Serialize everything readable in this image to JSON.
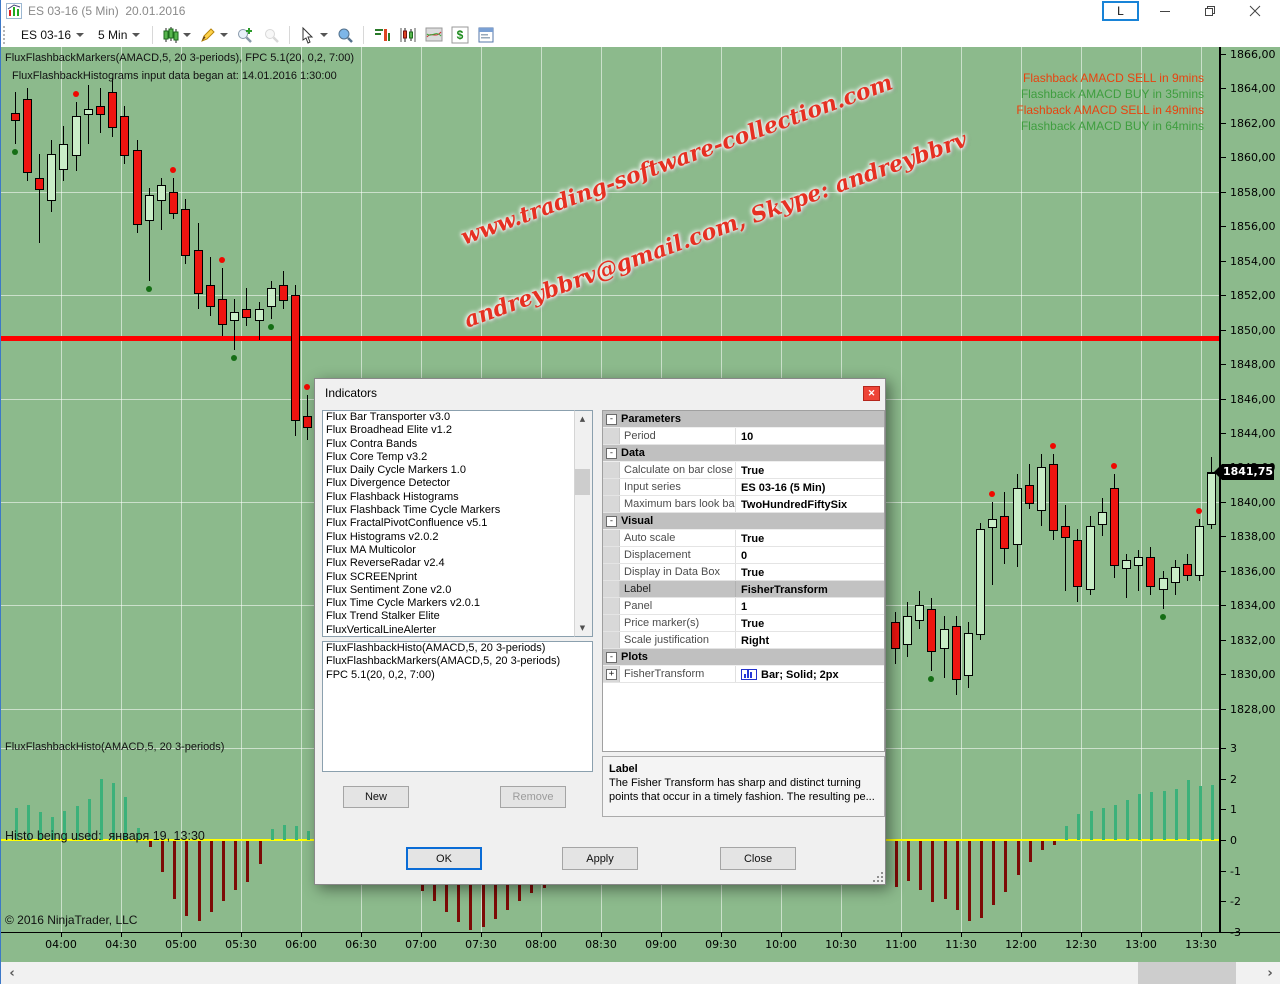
{
  "window": {
    "title": "ES 03-16 (5 Min)  20.01.2016",
    "link_button": "L"
  },
  "toolbar": {
    "instrument": "ES 03-16",
    "interval": "5 Min"
  },
  "chart": {
    "overlay_labels": [
      "FluxFlashbackMarkers(AMACD,5, 20 3-periods), FPC 5.1(20, 0,2, 7:00)",
      "FluxFlashbackHistograms input data began at: 14.01.2016 1:30:00"
    ],
    "alerts": [
      {
        "label": "Flashback AMACD SELL in 9mins",
        "side": "sell"
      },
      {
        "label": "Flashback AMACD BUY in 35mins",
        "side": "buy"
      },
      {
        "label": "Flashback AMACD SELL in 49mins",
        "side": "sell"
      },
      {
        "label": "Flashback AMACD BUY in 64mins",
        "side": "buy"
      }
    ],
    "watermark_line1": "www.trading-software-collection.com",
    "watermark_line2": "andreybbrv@gmail.com, Skype: andreybbrv",
    "panel2_label": "FluxFlashbackHisto(AMACD,5, 20 3-periods)",
    "histo_note": "Histo being used:  января 19, 13:30",
    "copyright": "© 2016 NinjaTrader, LLC"
  },
  "chart_data": {
    "type": "candlestick_with_histogram",
    "instrument": "ES 03-16 (5 Min)",
    "session_date": "20.01.2016",
    "price_axis": {
      "min": 1828,
      "max": 1866,
      "tick": 2
    },
    "price_labels": [
      "1866,00",
      "1864,00",
      "1862,00",
      "1860,00",
      "1858,00",
      "1856,00",
      "1854,00",
      "1852,00",
      "1850,00",
      "1848,00",
      "1846,00",
      "1844,00",
      "1842,00",
      "1840,00",
      "1838,00",
      "1836,00",
      "1834,00",
      "1832,00",
      "1830,00",
      "1828,00"
    ],
    "last_price": "1841,75",
    "last_price_value": 1841.75,
    "red_line_price": 1849.5,
    "h_grid_prices": [
      1858,
      1852,
      1846,
      1840,
      1834,
      1828
    ],
    "time_ticks": [
      "04:00",
      "04:30",
      "05:00",
      "05:30",
      "06:00",
      "06:30",
      "07:00",
      "07:30",
      "08:00",
      "08:30",
      "09:00",
      "09:30",
      "10:00",
      "10:30",
      "11:00",
      "11:30",
      "12:00",
      "12:30",
      "13:00",
      "13:30"
    ],
    "histogram_axis": {
      "min": -3,
      "max": 3,
      "tick": 1
    },
    "histogram_labels": [
      "3",
      "2",
      "1",
      "0",
      "-1",
      "-2",
      "-3"
    ],
    "candles": [
      [
        10,
        1862.6,
        1863.8,
        1860.8,
        1862.2,
        "b"
      ],
      [
        22,
        1863.4,
        1864.0,
        1858.6,
        1859.2,
        ""
      ],
      [
        34,
        1858.8,
        1860.2,
        1855.0,
        1858.2,
        ""
      ],
      [
        46,
        1857.6,
        1861.0,
        1856.8,
        1860.2,
        ""
      ],
      [
        58,
        1859.4,
        1861.8,
        1858.6,
        1860.8,
        ""
      ],
      [
        71,
        1860.2,
        1863.2,
        1859.2,
        1862.4,
        "s"
      ],
      [
        83,
        1862.6,
        1864.2,
        1860.8,
        1862.8,
        ""
      ],
      [
        95,
        1863.0,
        1864.0,
        1861.4,
        1862.6,
        ""
      ],
      [
        107,
        1863.8,
        1864.6,
        1861.2,
        1861.8,
        ""
      ],
      [
        119,
        1862.4,
        1863.0,
        1859.6,
        1860.2,
        ""
      ],
      [
        132,
        1860.4,
        1861.0,
        1855.6,
        1856.2,
        ""
      ],
      [
        144,
        1856.4,
        1858.2,
        1852.8,
        1857.8,
        "b"
      ],
      [
        156,
        1857.6,
        1858.8,
        1855.8,
        1858.4,
        ""
      ],
      [
        168,
        1858.0,
        1858.8,
        1856.4,
        1856.8,
        "s"
      ],
      [
        180,
        1857.0,
        1857.6,
        1853.8,
        1854.4,
        ""
      ],
      [
        193,
        1854.6,
        1856.2,
        1851.2,
        1852.2,
        ""
      ],
      [
        205,
        1852.6,
        1854.2,
        1850.8,
        1851.4,
        ""
      ],
      [
        217,
        1851.8,
        1853.6,
        1849.6,
        1850.4,
        "s"
      ],
      [
        229,
        1850.6,
        1851.8,
        1848.8,
        1851.0,
        "b"
      ],
      [
        241,
        1851.2,
        1852.4,
        1850.2,
        1850.8,
        ""
      ],
      [
        254,
        1850.6,
        1851.6,
        1849.4,
        1851.2,
        ""
      ],
      [
        266,
        1851.4,
        1852.8,
        1850.6,
        1852.4,
        "b"
      ],
      [
        278,
        1852.6,
        1853.4,
        1851.2,
        1851.8,
        ""
      ],
      [
        290,
        1852.0,
        1852.6,
        1843.8,
        1844.8,
        ""
      ],
      [
        302,
        1845.0,
        1846.2,
        1843.6,
        1844.4,
        "s"
      ],
      [
        890,
        1833.0,
        1833.6,
        1830.6,
        1831.6,
        ""
      ],
      [
        902,
        1831.8,
        1834.2,
        1831.0,
        1833.4,
        ""
      ],
      [
        914,
        1833.2,
        1834.8,
        1832.6,
        1834.0,
        ""
      ],
      [
        926,
        1833.8,
        1834.4,
        1830.2,
        1831.4,
        "b"
      ],
      [
        939,
        1831.6,
        1833.4,
        1829.8,
        1832.6,
        ""
      ],
      [
        951,
        1832.8,
        1833.4,
        1828.8,
        1829.8,
        ""
      ],
      [
        963,
        1830.0,
        1833.0,
        1829.2,
        1832.4,
        ""
      ],
      [
        975,
        1832.4,
        1838.8,
        1832.0,
        1838.4,
        ""
      ],
      [
        987,
        1838.6,
        1840.0,
        1835.2,
        1839.0,
        "s"
      ],
      [
        999,
        1839.2,
        1840.6,
        1836.4,
        1837.4,
        ""
      ],
      [
        1012,
        1837.6,
        1841.6,
        1836.2,
        1840.8,
        ""
      ],
      [
        1024,
        1841.0,
        1842.2,
        1839.6,
        1840.0,
        ""
      ],
      [
        1036,
        1839.6,
        1842.8,
        1838.6,
        1842.0,
        ""
      ],
      [
        1048,
        1842.2,
        1842.8,
        1837.8,
        1838.4,
        "s"
      ],
      [
        1060,
        1838.6,
        1839.8,
        1834.8,
        1838.0,
        ""
      ],
      [
        1072,
        1837.8,
        1838.4,
        1834.2,
        1835.2,
        ""
      ],
      [
        1085,
        1835.0,
        1839.2,
        1834.6,
        1838.6,
        ""
      ],
      [
        1097,
        1838.8,
        1840.2,
        1838.0,
        1839.4,
        ""
      ],
      [
        1109,
        1840.8,
        1841.6,
        1835.6,
        1836.4,
        "s"
      ],
      [
        1121,
        1836.2,
        1837.0,
        1834.4,
        1836.6,
        ""
      ],
      [
        1133,
        1836.4,
        1837.2,
        1834.8,
        1836.8,
        ""
      ],
      [
        1145,
        1836.8,
        1837.4,
        1834.6,
        1835.2,
        ""
      ],
      [
        1158,
        1835.0,
        1836.0,
        1833.8,
        1835.6,
        "b"
      ],
      [
        1170,
        1835.4,
        1836.6,
        1834.6,
        1836.2,
        ""
      ],
      [
        1182,
        1836.4,
        1837.0,
        1835.4,
        1835.8,
        ""
      ],
      [
        1194,
        1835.8,
        1839.0,
        1835.4,
        1838.6,
        "s"
      ],
      [
        1206,
        1838.8,
        1842.6,
        1838.4,
        1841.75,
        ""
      ]
    ],
    "histogram": [
      [
        14,
        1.05
      ],
      [
        26,
        1.15
      ],
      [
        38,
        0.9
      ],
      [
        50,
        0.75
      ],
      [
        62,
        0.95
      ],
      [
        75,
        1.1
      ],
      [
        87,
        1.35
      ],
      [
        99,
        2.0
      ],
      [
        111,
        1.85
      ],
      [
        123,
        1.4
      ],
      [
        136,
        0.4
      ],
      [
        148,
        -0.2
      ],
      [
        160,
        -1.0
      ],
      [
        172,
        -1.9
      ],
      [
        184,
        -2.45
      ],
      [
        197,
        -2.6
      ],
      [
        209,
        -2.3
      ],
      [
        221,
        -1.95
      ],
      [
        233,
        -1.6
      ],
      [
        245,
        -1.35
      ],
      [
        258,
        -0.75
      ],
      [
        270,
        0.35
      ],
      [
        282,
        0.5
      ],
      [
        294,
        0.45
      ],
      [
        306,
        0.3
      ],
      [
        322,
        -0.6
      ],
      [
        334,
        -0.85
      ],
      [
        346,
        -1.05
      ],
      [
        359,
        -1.15
      ],
      [
        371,
        -1.25
      ],
      [
        383,
        -1.3
      ],
      [
        395,
        -1.35
      ],
      [
        407,
        -1.4
      ],
      [
        420,
        -1.62
      ],
      [
        432,
        -1.95
      ],
      [
        444,
        -2.3
      ],
      [
        456,
        -2.65
      ],
      [
        468,
        -2.9
      ],
      [
        481,
        -2.8
      ],
      [
        493,
        -2.55
      ],
      [
        505,
        -2.25
      ],
      [
        517,
        -1.95
      ],
      [
        529,
        -1.7
      ],
      [
        542,
        -1.52
      ],
      [
        554,
        -1.38
      ],
      [
        566,
        -1.2
      ],
      [
        578,
        -1.05
      ],
      [
        590,
        -0.9
      ],
      [
        603,
        -0.75
      ],
      [
        615,
        -0.62
      ],
      [
        627,
        -0.5
      ],
      [
        639,
        -0.4
      ],
      [
        651,
        -0.3
      ],
      [
        664,
        -0.25
      ],
      [
        676,
        -0.2
      ],
      [
        688,
        -0.3
      ],
      [
        700,
        -0.45
      ],
      [
        712,
        -0.6
      ],
      [
        725,
        -0.75
      ],
      [
        737,
        -0.9
      ],
      [
        749,
        -1.0
      ],
      [
        761,
        -1.1
      ],
      [
        773,
        -1.2
      ],
      [
        786,
        -1.28
      ],
      [
        798,
        -1.34
      ],
      [
        810,
        -1.38
      ],
      [
        822,
        -1.4
      ],
      [
        834,
        -1.42
      ],
      [
        846,
        -1.42
      ],
      [
        858,
        -1.4
      ],
      [
        870,
        -1.38
      ],
      [
        882,
        -1.35
      ],
      [
        894,
        -1.5
      ],
      [
        906,
        -1.3
      ],
      [
        918,
        -1.6
      ],
      [
        930,
        -2.0
      ],
      [
        943,
        -1.9
      ],
      [
        955,
        -2.25
      ],
      [
        967,
        -2.6
      ],
      [
        979,
        -2.5
      ],
      [
        991,
        -2.1
      ],
      [
        1003,
        -1.65
      ],
      [
        1016,
        -1.1
      ],
      [
        1028,
        -0.7
      ],
      [
        1040,
        -0.3
      ],
      [
        1052,
        -0.12
      ],
      [
        1064,
        0.45
      ],
      [
        1076,
        0.85
      ],
      [
        1089,
        0.95
      ],
      [
        1101,
        1.05
      ],
      [
        1113,
        1.15
      ],
      [
        1125,
        1.3
      ],
      [
        1137,
        1.5
      ],
      [
        1149,
        1.55
      ],
      [
        1162,
        1.6
      ],
      [
        1174,
        1.65
      ],
      [
        1186,
        1.95
      ],
      [
        1198,
        1.75
      ],
      [
        1210,
        1.8
      ]
    ]
  },
  "dialog": {
    "title": "Indicators",
    "available": [
      "Flux Bar Transporter v3.0",
      "Flux Broadhead Elite v1.2",
      "Flux Contra Bands",
      "Flux Core Temp v3.2",
      "Flux Daily Cycle Markers 1.0",
      "Flux Divergence Detector",
      "Flux Flashback Histograms",
      "Flux Flashback Time Cycle Markers",
      "Flux FractalPivotConfluence v5.1",
      "Flux Histograms v2.0.2",
      "Flux MA Multicolor",
      "Flux ReverseRadar v2.4",
      "Flux SCREENprint",
      "Flux Sentiment Zone v2.0",
      "Flux Time Cycle Markers v2.0.1",
      "Flux Trend Stalker Elite",
      "FluxVerticalLineAlerter"
    ],
    "configured": [
      "FluxFlashbackHisto(AMACD,5, 20 3-periods)",
      "FluxFlashbackMarkers(AMACD,5, 20 3-periods)",
      "FPC 5.1(20, 0,2, 7:00)"
    ],
    "sections": [
      {
        "title": "Parameters",
        "rows": [
          {
            "name": "Period",
            "value": "10"
          }
        ]
      },
      {
        "title": "Data",
        "rows": [
          {
            "name": "Calculate on bar close",
            "value": "True"
          },
          {
            "name": "Input series",
            "value": "ES 03-16 (5 Min)"
          },
          {
            "name": "Maximum bars look back",
            "value": "TwoHundredFiftySix"
          }
        ]
      },
      {
        "title": "Visual",
        "rows": [
          {
            "name": "Auto scale",
            "value": "True"
          },
          {
            "name": "Displacement",
            "value": "0"
          },
          {
            "name": "Display in Data Box",
            "value": "True"
          },
          {
            "name": "Label",
            "value": "FisherTransform",
            "selected": true
          },
          {
            "name": "Panel",
            "value": "1"
          },
          {
            "name": "Price marker(s)",
            "value": "True"
          },
          {
            "name": "Scale justification",
            "value": "Right"
          }
        ]
      },
      {
        "title": "Plots",
        "rows": [
          {
            "name": "FisherTransform",
            "value": "Bar; Solid; 2px",
            "expand": true,
            "icon": "bar-plot"
          }
        ]
      }
    ],
    "buttons": {
      "new": "New",
      "remove": "Remove",
      "ok": "OK",
      "apply": "Apply",
      "close": "Close"
    },
    "description_title": "Label",
    "description_text": "The Fisher Transform has sharp and distinct turning points that occur in a timely fashion. The resulting pe..."
  },
  "colors": {
    "chart_bg": "#8cba8c",
    "candle_up": "#c9edc7",
    "candle_down": "#ee1410",
    "hist_up": "#3cb17a",
    "hist_down": "#7c0b06",
    "sell_text": "#e8430f",
    "buy_text": "#3f9e3f",
    "red_line": "#ff0000",
    "zero_line": "#ffff00",
    "sell_dot": "#f00800",
    "buy_dot": "#156e15"
  }
}
